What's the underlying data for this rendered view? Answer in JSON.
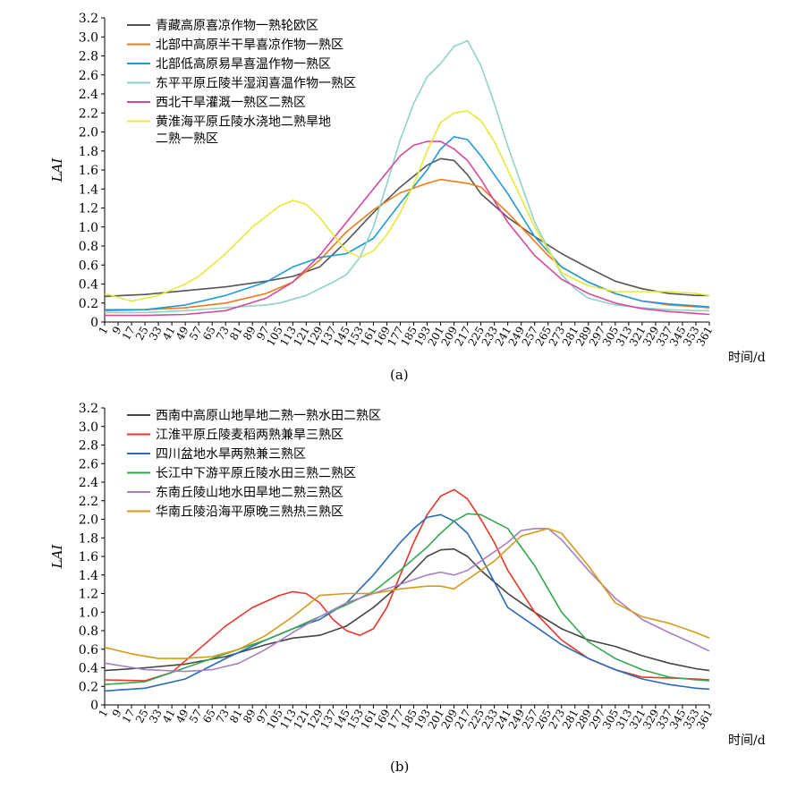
{
  "chart_data": [
    {
      "type": "line",
      "panel_label": "(a)",
      "ylabel": "LAI",
      "xlabel": "时间/d",
      "ylim": [
        0,
        3.2
      ],
      "yticks": [
        "0",
        "0.2",
        "0.4",
        "0.6",
        "0.8",
        "1.0",
        "1.2",
        "1.4",
        "1.6",
        "1.8",
        "2.0",
        "2.2",
        "2.4",
        "2.6",
        "2.8",
        "3.0",
        "3.2"
      ],
      "xticks": [
        "1",
        "9",
        "17",
        "25",
        "33",
        "41",
        "49",
        "57",
        "65",
        "73",
        "81",
        "89",
        "97",
        "105",
        "113",
        "121",
        "129",
        "137",
        "145",
        "153",
        "161",
        "169",
        "177",
        "185",
        "193",
        "201",
        "209",
        "217",
        "225",
        "233",
        "241",
        "249",
        "257",
        "265",
        "273",
        "281",
        "289",
        "297",
        "305",
        "313",
        "321",
        "329",
        "337",
        "345",
        "353",
        "361"
      ],
      "legend_position": "top-left",
      "series": [
        {
          "name": "青藏高原喜凉作物一熟轮欧区",
          "color": "#555555",
          "x": [
            1,
            25,
            49,
            73,
            97,
            113,
            129,
            145,
            161,
            177,
            193,
            201,
            209,
            217,
            225,
            241,
            257,
            273,
            289,
            305,
            321,
            337,
            353,
            361
          ],
          "y": [
            0.27,
            0.29,
            0.33,
            0.37,
            0.43,
            0.48,
            0.58,
            0.85,
            1.15,
            1.42,
            1.65,
            1.72,
            1.7,
            1.55,
            1.35,
            1.1,
            0.9,
            0.72,
            0.57,
            0.43,
            0.35,
            0.3,
            0.28,
            0.28
          ]
        },
        {
          "name": "北部中高原半干旱喜凉作物一熟区",
          "color": "#f07a1a",
          "x": [
            1,
            25,
            49,
            73,
            97,
            113,
            129,
            145,
            161,
            177,
            193,
            201,
            209,
            217,
            225,
            241,
            257,
            265,
            273,
            289,
            305,
            321,
            337,
            353,
            361
          ],
          "y": [
            0.12,
            0.13,
            0.15,
            0.2,
            0.3,
            0.42,
            0.65,
            0.95,
            1.18,
            1.36,
            1.46,
            1.5,
            1.48,
            1.46,
            1.42,
            1.15,
            0.85,
            0.7,
            0.58,
            0.42,
            0.3,
            0.22,
            0.18,
            0.16,
            0.15
          ]
        },
        {
          "name": "北部低高原易旱喜温作物一熟区",
          "color": "#1e9bd7",
          "x": [
            1,
            25,
            49,
            73,
            97,
            113,
            129,
            145,
            161,
            177,
            193,
            201,
            209,
            217,
            225,
            241,
            257,
            273,
            289,
            305,
            321,
            337,
            353,
            361
          ],
          "y": [
            0.13,
            0.13,
            0.18,
            0.28,
            0.42,
            0.58,
            0.68,
            0.72,
            0.88,
            1.25,
            1.6,
            1.82,
            1.95,
            1.92,
            1.75,
            1.35,
            0.9,
            0.58,
            0.42,
            0.3,
            0.22,
            0.19,
            0.17,
            0.16
          ]
        },
        {
          "name": "东平平原丘陵半湿润喜温作物一熟区",
          "color": "#8ed3c7",
          "x": [
            1,
            25,
            49,
            73,
            97,
            105,
            121,
            137,
            145,
            153,
            161,
            169,
            177,
            185,
            193,
            201,
            209,
            217,
            225,
            233,
            241,
            257,
            273,
            281,
            289,
            305,
            321,
            337,
            353,
            361
          ],
          "y": [
            0.1,
            0.1,
            0.12,
            0.15,
            0.18,
            0.2,
            0.28,
            0.42,
            0.5,
            0.68,
            1.0,
            1.45,
            1.92,
            2.3,
            2.58,
            2.72,
            2.9,
            2.96,
            2.7,
            2.3,
            1.85,
            1.05,
            0.5,
            0.35,
            0.25,
            0.18,
            0.15,
            0.13,
            0.12,
            0.12
          ]
        },
        {
          "name": "西北干旱灌溉一熟区二熟区",
          "color": "#d6479e",
          "x": [
            1,
            25,
            49,
            73,
            97,
            113,
            129,
            145,
            161,
            177,
            185,
            193,
            201,
            209,
            217,
            225,
            241,
            257,
            273,
            289,
            305,
            321,
            337,
            353,
            361
          ],
          "y": [
            0.07,
            0.07,
            0.08,
            0.12,
            0.25,
            0.42,
            0.7,
            1.05,
            1.4,
            1.75,
            1.86,
            1.9,
            1.9,
            1.82,
            1.7,
            1.5,
            1.05,
            0.7,
            0.45,
            0.3,
            0.2,
            0.14,
            0.11,
            0.09,
            0.08
          ]
        },
        {
          "name": "黄淮海平原丘陵水浇地二熟旱地二熟一熟区",
          "color": "#e8e83a",
          "legend_lines": [
            "黄淮海平原丘陵水浇地二熟旱地",
            "二熟一熟区"
          ],
          "x": [
            1,
            17,
            33,
            49,
            57,
            73,
            89,
            105,
            113,
            121,
            129,
            137,
            145,
            153,
            161,
            169,
            177,
            185,
            193,
            201,
            209,
            217,
            225,
            233,
            241,
            257,
            273,
            289,
            305,
            321,
            337,
            353,
            361
          ],
          "y": [
            0.3,
            0.22,
            0.28,
            0.4,
            0.48,
            0.72,
            1.0,
            1.22,
            1.28,
            1.24,
            1.1,
            0.92,
            0.75,
            0.68,
            0.75,
            0.92,
            1.15,
            1.45,
            1.8,
            2.1,
            2.2,
            2.22,
            2.12,
            1.9,
            1.6,
            1.0,
            0.52,
            0.38,
            0.32,
            0.32,
            0.32,
            0.3,
            0.28
          ]
        }
      ]
    },
    {
      "type": "line",
      "panel_label": "(b)",
      "ylabel": "LAI",
      "xlabel": "时间/d",
      "ylim": [
        0,
        3.2
      ],
      "yticks": [
        "0",
        "0.2",
        "0.4",
        "0.6",
        "0.8",
        "1.0",
        "1.2",
        "1.4",
        "1.6",
        "1.8",
        "2.0",
        "2.2",
        "2.4",
        "2.6",
        "2.8",
        "3.0",
        "3.2"
      ],
      "xticks": [
        "1",
        "9",
        "17",
        "25",
        "33",
        "41",
        "49",
        "57",
        "65",
        "73",
        "81",
        "89",
        "97",
        "105",
        "113",
        "121",
        "129",
        "137",
        "145",
        "153",
        "161",
        "169",
        "177",
        "185",
        "193",
        "201",
        "209",
        "217",
        "225",
        "233",
        "241",
        "249",
        "257",
        "265",
        "273",
        "281",
        "289",
        "297",
        "305",
        "313",
        "321",
        "329",
        "337",
        "345",
        "353",
        "361"
      ],
      "legend_position": "top-left",
      "series": [
        {
          "name": "西南中高原山地旱地二熟一熟水田二熟区",
          "color": "#444444",
          "x": [
            1,
            25,
            49,
            73,
            97,
            113,
            129,
            145,
            161,
            177,
            193,
            201,
            209,
            217,
            225,
            241,
            257,
            273,
            289,
            305,
            321,
            337,
            353,
            361
          ],
          "y": [
            0.37,
            0.4,
            0.44,
            0.52,
            0.65,
            0.72,
            0.75,
            0.85,
            1.05,
            1.3,
            1.6,
            1.67,
            1.68,
            1.6,
            1.45,
            1.2,
            1.0,
            0.82,
            0.7,
            0.63,
            0.53,
            0.45,
            0.39,
            0.37
          ]
        },
        {
          "name": "江淮平原丘陵麦稻两熟兼旱三熟区",
          "color": "#e8362a",
          "x": [
            1,
            25,
            41,
            57,
            73,
            89,
            105,
            113,
            121,
            129,
            137,
            145,
            153,
            161,
            169,
            177,
            185,
            193,
            201,
            209,
            217,
            225,
            233,
            241,
            257,
            273,
            289,
            305,
            321,
            337,
            353,
            361
          ],
          "y": [
            0.27,
            0.26,
            0.35,
            0.6,
            0.85,
            1.05,
            1.18,
            1.22,
            1.2,
            1.1,
            0.92,
            0.8,
            0.75,
            0.82,
            1.05,
            1.4,
            1.75,
            2.05,
            2.25,
            2.32,
            2.22,
            2.0,
            1.75,
            1.45,
            1.0,
            0.7,
            0.5,
            0.38,
            0.3,
            0.29,
            0.28,
            0.27
          ]
        },
        {
          "name": "四川盆地水旱两熟兼三熟区",
          "color": "#2a6ab8",
          "x": [
            1,
            25,
            49,
            73,
            97,
            113,
            129,
            145,
            161,
            177,
            185,
            193,
            201,
            209,
            217,
            225,
            241,
            257,
            273,
            289,
            305,
            321,
            337,
            353,
            361
          ],
          "y": [
            0.15,
            0.18,
            0.28,
            0.5,
            0.7,
            0.82,
            0.92,
            1.1,
            1.4,
            1.75,
            1.9,
            2.02,
            2.05,
            1.98,
            1.85,
            1.6,
            1.05,
            0.85,
            0.65,
            0.5,
            0.38,
            0.28,
            0.22,
            0.18,
            0.17
          ]
        },
        {
          "name": "长江中下游平原丘陵水田三熟二熟区",
          "color": "#33a850",
          "x": [
            1,
            25,
            49,
            73,
            97,
            113,
            129,
            145,
            161,
            177,
            193,
            201,
            209,
            217,
            225,
            241,
            257,
            273,
            289,
            305,
            321,
            337,
            353,
            361
          ],
          "y": [
            0.22,
            0.25,
            0.4,
            0.55,
            0.7,
            0.82,
            0.95,
            1.08,
            1.22,
            1.45,
            1.7,
            1.85,
            1.98,
            2.06,
            2.05,
            1.9,
            1.5,
            1.0,
            0.68,
            0.5,
            0.38,
            0.3,
            0.27,
            0.26
          ]
        },
        {
          "name": "东南丘陵山地水田旱地二熟三熟区",
          "color": "#a77fc3",
          "x": [
            1,
            25,
            49,
            65,
            81,
            97,
            113,
            129,
            145,
            161,
            177,
            193,
            201,
            209,
            217,
            225,
            241,
            249,
            257,
            265,
            273,
            289,
            305,
            321,
            337,
            353,
            361
          ],
          "y": [
            0.45,
            0.38,
            0.36,
            0.38,
            0.45,
            0.6,
            0.78,
            0.95,
            1.1,
            1.2,
            1.3,
            1.4,
            1.43,
            1.4,
            1.45,
            1.55,
            1.75,
            1.88,
            1.9,
            1.9,
            1.78,
            1.45,
            1.15,
            0.92,
            0.78,
            0.65,
            0.58
          ]
        },
        {
          "name": "华南丘陵沿海平原晚三熟热三熟区",
          "color": "#d49a1a",
          "x": [
            1,
            17,
            33,
            49,
            65,
            81,
            97,
            113,
            129,
            145,
            161,
            177,
            193,
            201,
            209,
            217,
            233,
            249,
            265,
            273,
            289,
            305,
            321,
            337,
            353,
            361
          ],
          "y": [
            0.62,
            0.55,
            0.5,
            0.5,
            0.52,
            0.6,
            0.75,
            0.95,
            1.18,
            1.2,
            1.2,
            1.25,
            1.28,
            1.28,
            1.25,
            1.35,
            1.55,
            1.82,
            1.9,
            1.85,
            1.5,
            1.1,
            0.95,
            0.88,
            0.78,
            0.72
          ]
        }
      ]
    }
  ]
}
